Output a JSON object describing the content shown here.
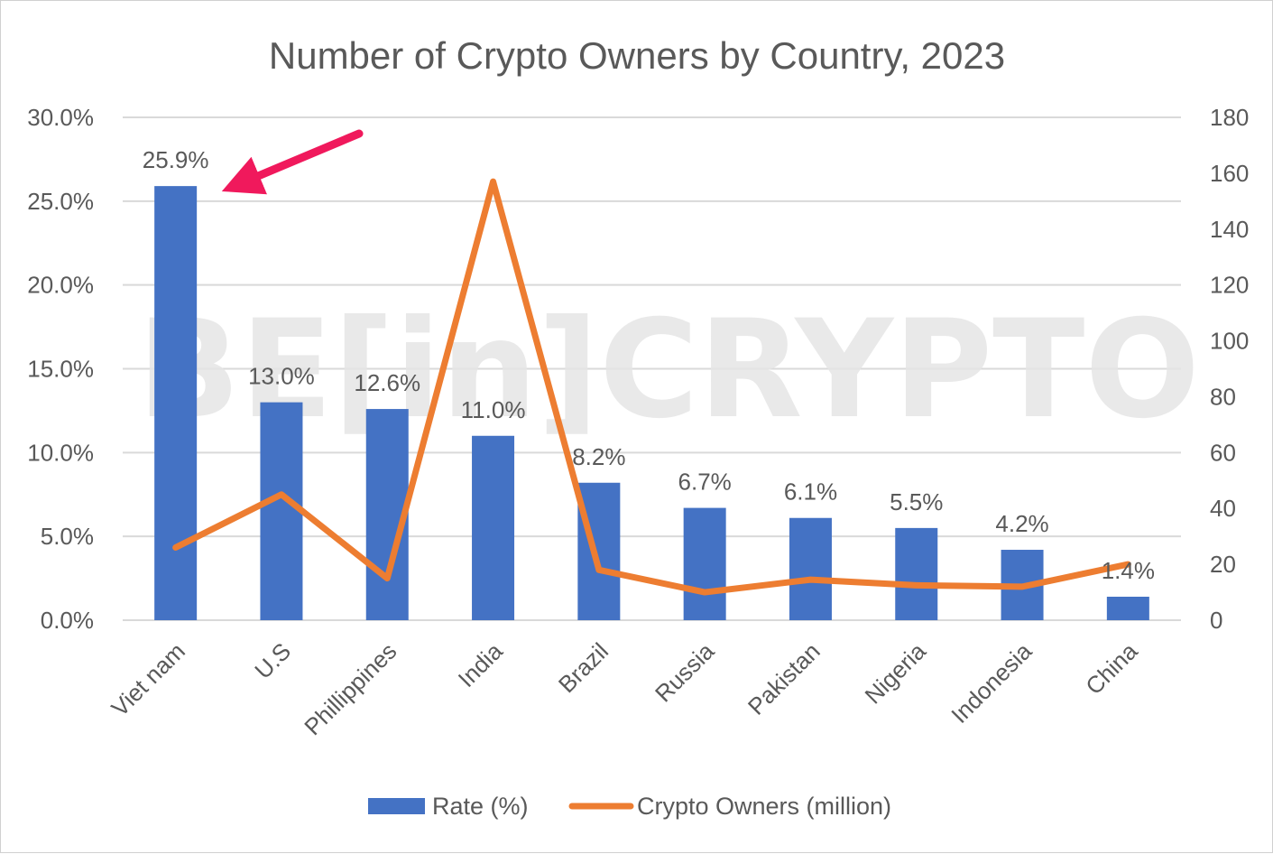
{
  "chart_data": {
    "type": "bar+line",
    "title": "Number of Crypto Owners by Country, 2023",
    "categories": [
      "Viet nam",
      "U.S",
      "Phillippines",
      "India",
      "Brazil",
      "Russia",
      "Pakistan",
      "Nigeria",
      "Indonesia",
      "China"
    ],
    "series": [
      {
        "name": "Rate (%)",
        "type": "bar",
        "axis": "left",
        "values": [
          25.9,
          13.0,
          12.6,
          11.0,
          8.2,
          6.7,
          6.1,
          5.5,
          4.2,
          1.4
        ],
        "labels": [
          "25.9%",
          "13.0%",
          "12.6%",
          "11.0%",
          "8.2%",
          "6.7%",
          "6.1%",
          "5.5%",
          "4.2%",
          "1.4%"
        ],
        "color": "#4472C4"
      },
      {
        "name": "Crypto Owners (million)",
        "type": "line",
        "axis": "right",
        "values": [
          26,
          45,
          15,
          157,
          18,
          10,
          14.5,
          12.5,
          12,
          20
        ],
        "color": "#ED7D31"
      }
    ],
    "y_left": {
      "min": 0,
      "max": 30,
      "ticks": [
        "0.0%",
        "5.0%",
        "10.0%",
        "15.0%",
        "20.0%",
        "25.0%",
        "30.0%"
      ]
    },
    "y_right": {
      "min": 0,
      "max": 180,
      "ticks": [
        "0",
        "20",
        "40",
        "60",
        "80",
        "100",
        "120",
        "140",
        "160",
        "180"
      ]
    },
    "grid": true,
    "legend_position": "bottom",
    "annotation": {
      "type": "arrow",
      "color": "#F0195C",
      "points_to": "Viet nam"
    },
    "watermark": "BE[in]CRYPTO"
  }
}
